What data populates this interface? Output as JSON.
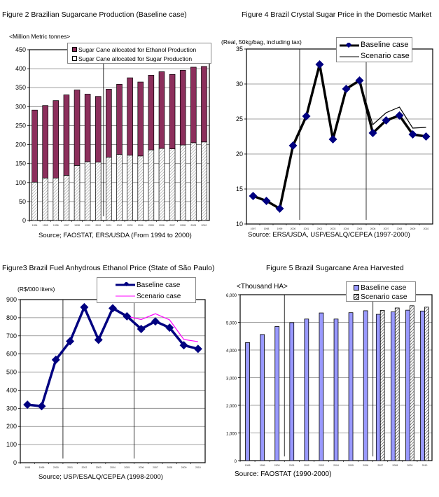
{
  "fig2": {
    "title": "Figure 2 Brazilian Sugarcane Production (Baseline case)",
    "unit": "<Million Metric tonnes>",
    "source": "Source; FAOSTAT, ERS/USDA (From 1994 to 2000)",
    "legend": [
      "Sugar Cane allocated for Ethanol Production",
      "Sugar Cane allocated for Sugar Production"
    ]
  },
  "fig4": {
    "title": "Figure 4 Brazil Crystal Sugar Price in the Domestic Market",
    "unit": "(Real, 50kg/bag, including tax)",
    "source": "Source: ERS/USDA, USP/ESALQ/CEPEA (1997-2000)",
    "legend": [
      "Baseline case",
      "Scenario case"
    ]
  },
  "fig3": {
    "title": "Figure3 Brazil Fuel Anhydrous Ethanol Price (State of São Paulo)",
    "unit": "(R$/000 liters)",
    "source": "Source; USP/ESALQ/CEPEA (1998-2000)",
    "legend": [
      "Baseline case",
      "Scenario case"
    ]
  },
  "fig5": {
    "title": "Figure 5 Brazil Sugarcane Area Harvested",
    "unit": "<Thousand HA>",
    "source": "Source: FAOSTAT (1990-2000)",
    "legend": [
      "Baseline case",
      "Scenario case"
    ]
  },
  "colors": {
    "ethanol": "#8c2f5c",
    "sugar_hatch": "#c8c8c8",
    "baseline_fig4": "#000000",
    "marker": "#000080",
    "baseline_fig3": "#000080",
    "scenario_fig3": "#ff00ff",
    "area_bar": "#9999ff",
    "grid": "#808080"
  },
  "chart_data": [
    {
      "id": "fig2",
      "type": "bar",
      "stacked": true,
      "title": "Figure 2 Brazilian Sugarcane Production (Baseline case)",
      "ylabel": "<Million Metric tonnes>",
      "xlabel": "",
      "categories": [
        "1994",
        "1995",
        "1996",
        "1997",
        "1998",
        "1999",
        "2000",
        "2001",
        "2002",
        "2003",
        "2004",
        "2005",
        "2006",
        "2007",
        "2008",
        "2009",
        "2010"
      ],
      "series": [
        {
          "name": "Sugar Cane allocated for Sugar Production",
          "values": [
            101,
            112,
            112,
            119,
            145,
            155,
            154,
            167,
            174,
            172,
            170,
            186,
            190,
            189,
            199,
            205,
            207
          ]
        },
        {
          "name": "Sugar Cane allocated for Ethanol Production",
          "values": [
            190,
            191,
            204,
            212,
            199,
            178,
            173,
            179,
            185,
            204,
            195,
            197,
            202,
            196,
            197,
            199,
            199
          ]
        }
      ],
      "totals": [
        291,
        303,
        316,
        331,
        344,
        333,
        327,
        346,
        359,
        376,
        365,
        383,
        392,
        385,
        396,
        404,
        406
      ],
      "ylim": [
        0,
        450
      ],
      "yticks": [
        0,
        50,
        100,
        150,
        200,
        250,
        300,
        350,
        400,
        450
      ],
      "grid": true,
      "legend_position": "top-right",
      "divider_after": "2000"
    },
    {
      "id": "fig4",
      "type": "line",
      "title": "Figure 4 Brazil Crystal Sugar Price in the Domestic Market",
      "ylabel": "(Real, 50kg/bag, including tax)",
      "categories": [
        "1997",
        "1998",
        "1999",
        "2000",
        "2001",
        "2002",
        "2003",
        "2004",
        "2005",
        "2006",
        "2007",
        "2008",
        "2009",
        "2010"
      ],
      "series": [
        {
          "name": "Baseline case",
          "values": [
            14.0,
            13.3,
            12.2,
            21.2,
            25.4,
            32.8,
            22.1,
            29.3,
            30.5,
            23.0,
            24.8,
            25.5,
            22.8,
            22.5
          ]
        },
        {
          "name": "Scenario case",
          "values": [
            14.0,
            13.3,
            12.2,
            21.2,
            25.4,
            32.8,
            22.1,
            29.3,
            30.5,
            24.2,
            25.9,
            26.7,
            23.7,
            23.8
          ]
        }
      ],
      "ylim": [
        10,
        35
      ],
      "yticks": [
        10,
        15,
        20,
        25,
        30,
        35
      ],
      "grid": true,
      "legend_position": "top-right",
      "dividers_after": [
        "2000",
        "2005"
      ]
    },
    {
      "id": "fig3",
      "type": "line",
      "title": "Figure3 Brazil Fuel Anhydrous Ethanol Price (State of São Paulo)",
      "ylabel": "(R$/000 liters)",
      "categories": [
        "1998",
        "1999",
        "2000",
        "2001",
        "2002",
        "2003",
        "2004",
        "2005",
        "2006",
        "2007",
        "2008",
        "2009",
        "2010"
      ],
      "series": [
        {
          "name": "Baseline case",
          "values": [
            320,
            312,
            568,
            670,
            858,
            678,
            852,
            808,
            738,
            780,
            745,
            648,
            628
          ]
        },
        {
          "name": "Scenario case",
          "values": [
            320,
            312,
            568,
            670,
            858,
            678,
            852,
            808,
            790,
            822,
            788,
            680,
            668
          ]
        }
      ],
      "ylim": [
        0,
        900
      ],
      "yticks": [
        0,
        100,
        200,
        300,
        400,
        500,
        600,
        700,
        800,
        900
      ],
      "grid": true,
      "legend_position": "top-right",
      "dividers_after": [
        "2000",
        "2005"
      ]
    },
    {
      "id": "fig5",
      "type": "bar",
      "title": "Figure 5 Brazil Sugarcane Area Harvested",
      "ylabel": "<Thousand HA>",
      "categories": [
        "1998",
        "1999",
        "2000",
        "2001",
        "2002",
        "2003",
        "2004",
        "2005",
        "2006",
        "2007",
        "2008",
        "2009",
        "2010"
      ],
      "series": [
        {
          "name": "Baseline case",
          "values": [
            4270,
            4560,
            4850,
            4990,
            5120,
            5340,
            5120,
            5350,
            5420,
            5290,
            5380,
            5440,
            5410
          ]
        },
        {
          "name": "Scenario case",
          "values": [
            null,
            null,
            null,
            null,
            null,
            null,
            null,
            null,
            null,
            5430,
            5520,
            5600,
            5550
          ]
        }
      ],
      "ylim": [
        0,
        6000
      ],
      "yticks": [
        "0",
        "1,000",
        "2,000",
        "3,000",
        "4,000",
        "5,000",
        "6,000"
      ],
      "grid": true,
      "legend_position": "top-right",
      "dividers_after": [
        "2000",
        "2006"
      ]
    }
  ]
}
